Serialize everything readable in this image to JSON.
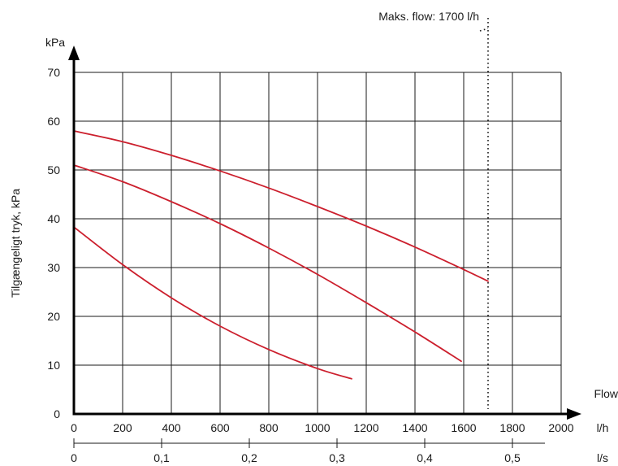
{
  "chart_data": {
    "type": "line",
    "ylabel": "Tilgængeligt tryk, kPa",
    "yunit": "kPa",
    "xlabel": "Flow",
    "xunit": "l/h",
    "x2unit": "l/s",
    "xlim": [
      0,
      2000
    ],
    "ylim": [
      0,
      70
    ],
    "xticks": [
      "0",
      "200",
      "400",
      "600",
      "800",
      "1000",
      "1200",
      "1400",
      "1600",
      "1800",
      "2000"
    ],
    "yticks": [
      "0",
      "10",
      "20",
      "30",
      "40",
      "50",
      "60",
      "70"
    ],
    "x2ticks": [
      {
        "label": "0",
        "lh": 0
      },
      {
        "label": "0,1",
        "lh": 360
      },
      {
        "label": "0,2",
        "lh": 720
      },
      {
        "label": "0,3",
        "lh": 1080
      },
      {
        "label": "0,4",
        "lh": 1440
      },
      {
        "label": "0,5",
        "lh": 1800
      }
    ],
    "grid": true,
    "series_color": "#cc1f2d",
    "series": [
      {
        "x": [
          0,
          200,
          400,
          600,
          800,
          1000,
          1200,
          1400,
          1600,
          1700
        ],
        "y": [
          58,
          55.8,
          53,
          49.8,
          46.3,
          42.5,
          38.5,
          34.2,
          29.6,
          27.2
        ]
      },
      {
        "x": [
          0,
          200,
          400,
          600,
          800,
          1000,
          1200,
          1400,
          1590
        ],
        "y": [
          51,
          47.6,
          43.5,
          39,
          34,
          28.6,
          22.8,
          16.8,
          10.8
        ]
      },
      {
        "x": [
          0,
          200,
          400,
          600,
          800,
          1000,
          1140
        ],
        "y": [
          38.3,
          30.6,
          23.8,
          18,
          13.2,
          9.3,
          7.2
        ]
      }
    ],
    "limit": {
      "label": "Maks. flow: 1700 l/h",
      "x": 1700
    }
  }
}
